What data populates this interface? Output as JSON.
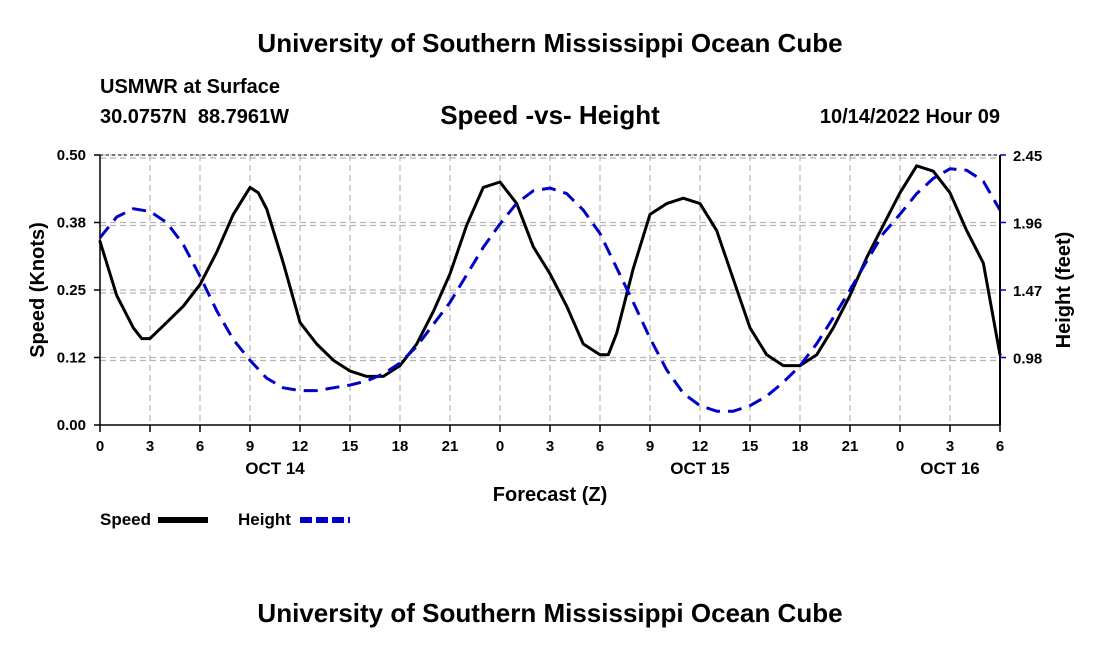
{
  "header": {
    "title": "University of Southern Mississippi Ocean Cube",
    "station": "USMWR at Surface",
    "coords": "30.0757N  88.7961W",
    "datetime": "10/14/2022 Hour 09"
  },
  "footer": {
    "title": "University of Southern Mississippi Ocean Cube"
  },
  "chart_data": {
    "type": "line",
    "title": "Speed -vs- Height",
    "xlabel": "Forecast (Z)",
    "ylabel_left": "Speed (Knots)",
    "ylabel_right": "Height (feet)",
    "x_range": [
      0,
      54
    ],
    "x_units": "hours from Oct 14 00Z",
    "x_ticks": [
      0,
      3,
      6,
      9,
      12,
      15,
      18,
      21,
      24,
      27,
      30,
      33,
      36,
      39,
      42,
      45,
      48,
      51,
      54
    ],
    "x_tick_labels": [
      "0",
      "3",
      "6",
      "9",
      "12",
      "15",
      "18",
      "21",
      "0",
      "3",
      "6",
      "9",
      "12",
      "15",
      "18",
      "21",
      "0",
      "3",
      "6"
    ],
    "date_labels": [
      {
        "label": "OCT 14",
        "x": 10.5
      },
      {
        "label": "OCT 15",
        "x": 36
      },
      {
        "label": "OCT 16",
        "x": 51
      }
    ],
    "ylim_left": [
      0,
      0.5
    ],
    "y_ticks_left": [
      0,
      0.125,
      0.25,
      0.375,
      0.5
    ],
    "y_tick_labels_left": [
      "0.00",
      "0.12",
      "0.25",
      "0.38",
      "0.50"
    ],
    "ylim_right": [
      0.49,
      2.45
    ],
    "y_ticks_right": [
      0.98,
      1.47,
      1.96,
      2.45
    ],
    "y_tick_labels_right": [
      "0.98",
      "1.47",
      "1.96",
      "2.45"
    ],
    "grid": true,
    "series": [
      {
        "name": "Speed",
        "axis": "left",
        "color": "#000000",
        "style": "solid",
        "x": [
          0,
          1,
          2,
          2.5,
          3,
          4,
          5,
          6,
          7,
          8,
          9,
          9.5,
          10,
          11,
          12,
          13,
          14,
          15,
          16,
          17,
          18,
          19,
          20,
          21,
          22,
          23,
          24,
          25,
          26,
          27,
          28,
          29,
          30,
          30.5,
          31,
          32,
          33,
          34,
          35,
          36,
          37,
          38,
          39,
          40,
          41,
          42,
          43,
          44,
          45,
          46,
          47,
          48,
          49,
          50,
          51,
          52,
          53,
          54
        ],
        "values": [
          0.34,
          0.24,
          0.18,
          0.16,
          0.16,
          0.19,
          0.22,
          0.26,
          0.32,
          0.39,
          0.44,
          0.43,
          0.4,
          0.3,
          0.19,
          0.15,
          0.12,
          0.1,
          0.09,
          0.09,
          0.11,
          0.15,
          0.21,
          0.28,
          0.37,
          0.44,
          0.45,
          0.41,
          0.33,
          0.28,
          0.22,
          0.15,
          0.13,
          0.13,
          0.17,
          0.29,
          0.39,
          0.41,
          0.42,
          0.41,
          0.36,
          0.27,
          0.18,
          0.13,
          0.11,
          0.11,
          0.13,
          0.18,
          0.24,
          0.31,
          0.37,
          0.43,
          0.48,
          0.47,
          0.43,
          0.36,
          0.3,
          0.13
        ]
      },
      {
        "name": "Height",
        "axis": "right",
        "color": "#0000c8",
        "style": "dashed",
        "x": [
          0,
          1,
          2,
          3,
          4,
          5,
          6,
          7,
          8,
          9,
          10,
          11,
          12,
          13,
          14,
          15,
          16,
          17,
          18,
          19,
          20,
          21,
          22,
          23,
          24,
          25,
          26,
          27,
          28,
          29,
          30,
          31,
          32,
          33,
          34,
          35,
          36,
          37,
          38,
          39,
          40,
          41,
          42,
          43,
          44,
          45,
          46,
          47,
          48,
          49,
          50,
          51,
          52,
          53,
          54
        ],
        "values": [
          1.85,
          2.0,
          2.06,
          2.04,
          1.96,
          1.8,
          1.57,
          1.32,
          1.11,
          0.96,
          0.83,
          0.76,
          0.74,
          0.74,
          0.76,
          0.78,
          0.81,
          0.86,
          0.94,
          1.06,
          1.22,
          1.38,
          1.58,
          1.78,
          1.95,
          2.1,
          2.19,
          2.21,
          2.17,
          2.05,
          1.88,
          1.63,
          1.38,
          1.12,
          0.89,
          0.72,
          0.63,
          0.59,
          0.59,
          0.63,
          0.7,
          0.8,
          0.92,
          1.08,
          1.27,
          1.47,
          1.68,
          1.88,
          2.02,
          2.17,
          2.28,
          2.35,
          2.34,
          2.26,
          2.05
        ]
      }
    ],
    "legend": [
      {
        "label": "Speed",
        "color": "#000000",
        "style": "solid"
      },
      {
        "label": "Height",
        "color": "#0000c8",
        "style": "dashed"
      }
    ]
  }
}
